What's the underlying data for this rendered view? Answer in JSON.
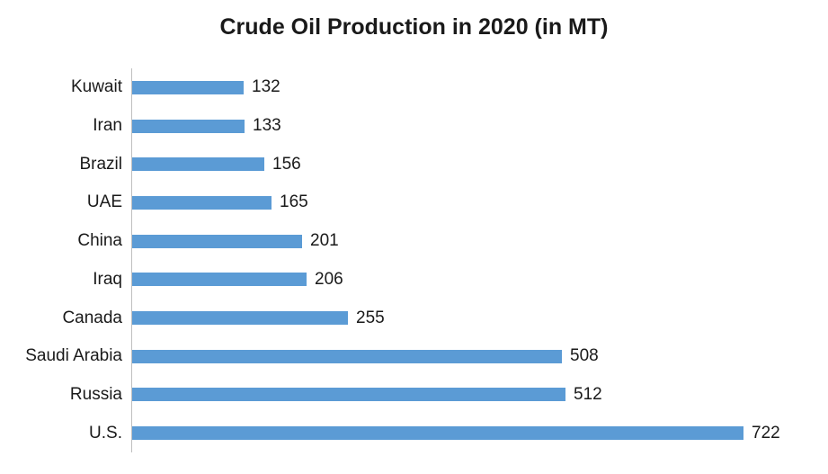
{
  "chart_data": {
    "type": "bar",
    "orientation": "horizontal",
    "title": "Crude Oil Production in 2020 (in MT)",
    "categories": [
      "Kuwait",
      "Iran",
      "Brazil",
      "UAE",
      "China",
      "Iraq",
      "Canada",
      "Saudi Arabia",
      "Russia",
      "U.S."
    ],
    "values": [
      132,
      133,
      156,
      165,
      201,
      206,
      255,
      508,
      512,
      722
    ],
    "xlabel": "",
    "ylabel": "",
    "xlim": [
      0,
      722
    ],
    "value_labels_shown": true,
    "legend_position": "none",
    "grid": "off",
    "bar_color": "#5B9BD5",
    "axis_line_color": "#BFBFBF",
    "text_color": "#1A1A1A"
  }
}
